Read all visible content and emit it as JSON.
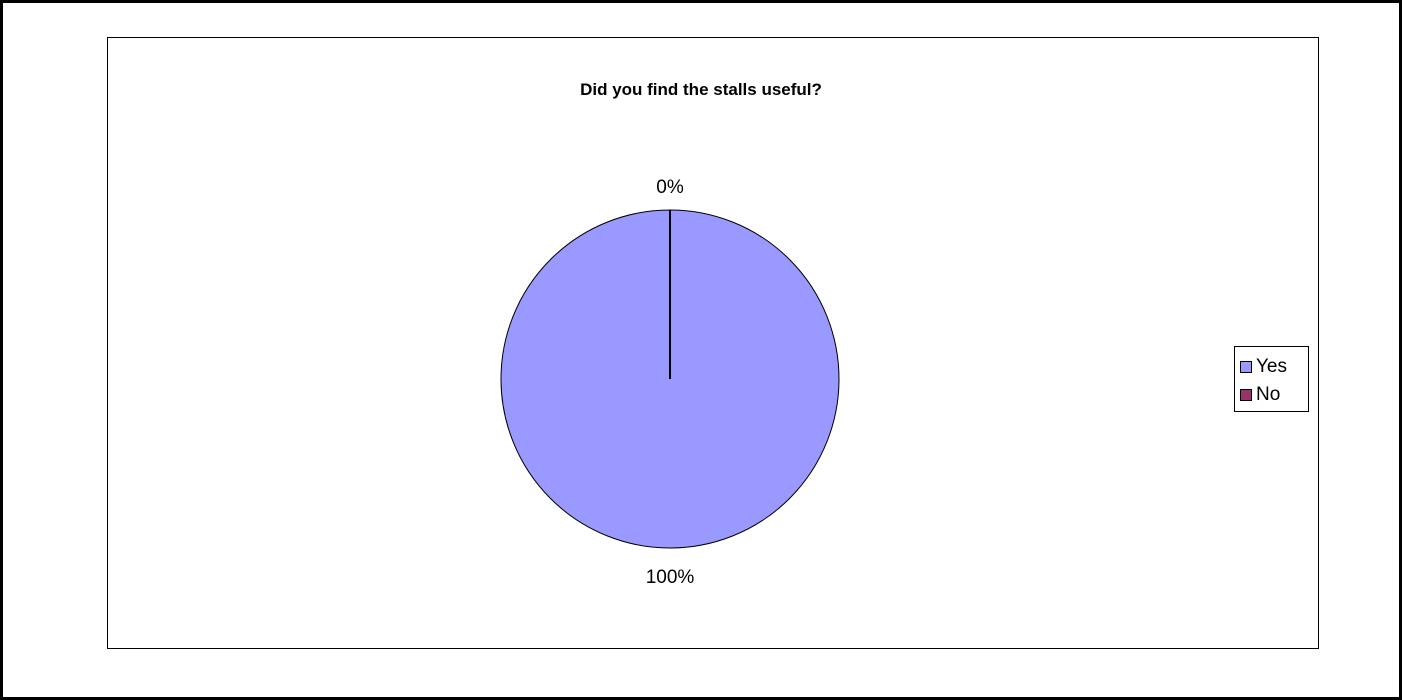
{
  "chart_data": {
    "type": "pie",
    "title": "Did you find the stalls useful?",
    "categories": [
      "Yes",
      "No"
    ],
    "values": [
      100,
      0
    ],
    "data_labels": [
      "100%",
      "0%"
    ],
    "colors": [
      "#9999FF",
      "#993366"
    ],
    "legend": "right"
  }
}
